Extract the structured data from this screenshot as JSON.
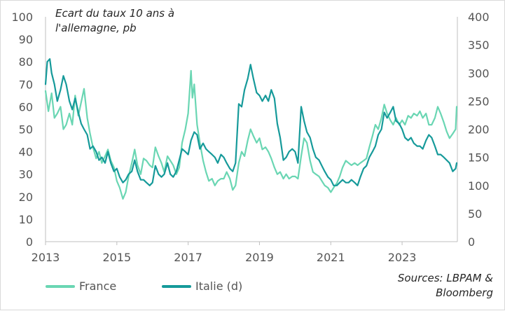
{
  "chart_data": {
    "type": "line",
    "title": "Ecart du taux 10 ans à l'allemagne, pb",
    "source": "Sources: LBPAM & Bloomberg",
    "x_range": [
      2013.0,
      2024.55
    ],
    "x_ticks": [
      "2013",
      "2015",
      "2017",
      "2019",
      "2021",
      "2023"
    ],
    "y_left": {
      "range": [
        0,
        100
      ],
      "ticks": [
        "0",
        "10",
        "20",
        "30",
        "40",
        "50",
        "60",
        "70",
        "80",
        "90",
        "100"
      ]
    },
    "y_right": {
      "range": [
        0,
        400
      ],
      "ticks": [
        "0",
        "50",
        "100",
        "150",
        "200",
        "250",
        "300",
        "350",
        "400"
      ]
    },
    "grid": false,
    "legend_position": "bottom-left",
    "series": [
      {
        "name": "France",
        "axis": "left",
        "color": "#6ad6b3",
        "points": [
          [
            2013.0,
            67
          ],
          [
            2013.08,
            58
          ],
          [
            2013.17,
            66
          ],
          [
            2013.25,
            55
          ],
          [
            2013.33,
            57
          ],
          [
            2013.42,
            60
          ],
          [
            2013.5,
            50
          ],
          [
            2013.58,
            52
          ],
          [
            2013.67,
            57
          ],
          [
            2013.75,
            52
          ],
          [
            2013.83,
            65
          ],
          [
            2013.92,
            56
          ],
          [
            2014.0,
            62
          ],
          [
            2014.08,
            68
          ],
          [
            2014.17,
            55
          ],
          [
            2014.25,
            48
          ],
          [
            2014.33,
            42
          ],
          [
            2014.42,
            37
          ],
          [
            2014.5,
            40
          ],
          [
            2014.58,
            35
          ],
          [
            2014.67,
            38
          ],
          [
            2014.75,
            41
          ],
          [
            2014.83,
            36
          ],
          [
            2014.92,
            33
          ],
          [
            2015.0,
            27
          ],
          [
            2015.08,
            24
          ],
          [
            2015.17,
            19
          ],
          [
            2015.25,
            22
          ],
          [
            2015.33,
            29
          ],
          [
            2015.42,
            35
          ],
          [
            2015.5,
            41
          ],
          [
            2015.58,
            34
          ],
          [
            2015.67,
            30
          ],
          [
            2015.75,
            37
          ],
          [
            2015.83,
            36
          ],
          [
            2015.92,
            34
          ],
          [
            2016.0,
            33
          ],
          [
            2016.08,
            42
          ],
          [
            2016.17,
            38
          ],
          [
            2016.25,
            35
          ],
          [
            2016.33,
            31
          ],
          [
            2016.42,
            38
          ],
          [
            2016.5,
            36
          ],
          [
            2016.58,
            34
          ],
          [
            2016.67,
            30
          ],
          [
            2016.75,
            33
          ],
          [
            2016.83,
            44
          ],
          [
            2016.92,
            50
          ],
          [
            2017.0,
            57
          ],
          [
            2017.08,
            76
          ],
          [
            2017.12,
            64
          ],
          [
            2017.17,
            70
          ],
          [
            2017.25,
            52
          ],
          [
            2017.33,
            44
          ],
          [
            2017.42,
            36
          ],
          [
            2017.5,
            31
          ],
          [
            2017.58,
            27
          ],
          [
            2017.67,
            28
          ],
          [
            2017.75,
            25
          ],
          [
            2017.83,
            27
          ],
          [
            2017.92,
            28
          ],
          [
            2018.0,
            28
          ],
          [
            2018.08,
            31
          ],
          [
            2018.17,
            28
          ],
          [
            2018.25,
            23
          ],
          [
            2018.33,
            25
          ],
          [
            2018.42,
            35
          ],
          [
            2018.5,
            40
          ],
          [
            2018.58,
            38
          ],
          [
            2018.67,
            45
          ],
          [
            2018.75,
            50
          ],
          [
            2018.83,
            47
          ],
          [
            2018.92,
            44
          ],
          [
            2019.0,
            46
          ],
          [
            2019.08,
            41
          ],
          [
            2019.17,
            42
          ],
          [
            2019.25,
            40
          ],
          [
            2019.33,
            37
          ],
          [
            2019.42,
            33
          ],
          [
            2019.5,
            30
          ],
          [
            2019.58,
            31
          ],
          [
            2019.67,
            28
          ],
          [
            2019.75,
            30
          ],
          [
            2019.83,
            28
          ],
          [
            2019.92,
            29
          ],
          [
            2020.0,
            29
          ],
          [
            2020.08,
            28
          ],
          [
            2020.17,
            38
          ],
          [
            2020.25,
            46
          ],
          [
            2020.33,
            44
          ],
          [
            2020.42,
            36
          ],
          [
            2020.5,
            31
          ],
          [
            2020.58,
            30
          ],
          [
            2020.67,
            29
          ],
          [
            2020.75,
            27
          ],
          [
            2020.83,
            25
          ],
          [
            2020.92,
            24
          ],
          [
            2021.0,
            22
          ],
          [
            2021.08,
            24
          ],
          [
            2021.17,
            26
          ],
          [
            2021.25,
            29
          ],
          [
            2021.33,
            33
          ],
          [
            2021.42,
            36
          ],
          [
            2021.5,
            35
          ],
          [
            2021.58,
            34
          ],
          [
            2021.67,
            35
          ],
          [
            2021.75,
            34
          ],
          [
            2021.83,
            35
          ],
          [
            2021.92,
            36
          ],
          [
            2022.0,
            37
          ],
          [
            2022.08,
            42
          ],
          [
            2022.17,
            47
          ],
          [
            2022.25,
            52
          ],
          [
            2022.33,
            50
          ],
          [
            2022.42,
            55
          ],
          [
            2022.5,
            61
          ],
          [
            2022.58,
            57
          ],
          [
            2022.67,
            54
          ],
          [
            2022.75,
            52
          ],
          [
            2022.83,
            55
          ],
          [
            2022.92,
            52
          ],
          [
            2023.0,
            54
          ],
          [
            2023.08,
            52
          ],
          [
            2023.17,
            56
          ],
          [
            2023.25,
            55
          ],
          [
            2023.33,
            57
          ],
          [
            2023.42,
            56
          ],
          [
            2023.5,
            58
          ],
          [
            2023.58,
            55
          ],
          [
            2023.67,
            57
          ],
          [
            2023.75,
            52
          ],
          [
            2023.83,
            52
          ],
          [
            2023.92,
            55
          ],
          [
            2024.0,
            60
          ],
          [
            2024.08,
            57
          ],
          [
            2024.17,
            53
          ],
          [
            2024.25,
            49
          ],
          [
            2024.33,
            46
          ],
          [
            2024.42,
            48
          ],
          [
            2024.5,
            50
          ],
          [
            2024.53,
            60
          ]
        ]
      },
      {
        "name": "Italie (d)",
        "axis": "right",
        "color": "#169a9a",
        "points": [
          [
            2013.0,
            280
          ],
          [
            2013.05,
            320
          ],
          [
            2013.12,
            325
          ],
          [
            2013.17,
            300
          ],
          [
            2013.25,
            280
          ],
          [
            2013.33,
            250
          ],
          [
            2013.42,
            270
          ],
          [
            2013.5,
            295
          ],
          [
            2013.58,
            280
          ],
          [
            2013.67,
            250
          ],
          [
            2013.75,
            235
          ],
          [
            2013.83,
            255
          ],
          [
            2013.92,
            230
          ],
          [
            2014.0,
            210
          ],
          [
            2014.08,
            200
          ],
          [
            2014.17,
            190
          ],
          [
            2014.25,
            165
          ],
          [
            2014.33,
            170
          ],
          [
            2014.42,
            160
          ],
          [
            2014.5,
            145
          ],
          [
            2014.58,
            150
          ],
          [
            2014.67,
            140
          ],
          [
            2014.75,
            160
          ],
          [
            2014.83,
            140
          ],
          [
            2014.92,
            125
          ],
          [
            2015.0,
            130
          ],
          [
            2015.08,
            115
          ],
          [
            2015.17,
            105
          ],
          [
            2015.25,
            110
          ],
          [
            2015.33,
            120
          ],
          [
            2015.42,
            125
          ],
          [
            2015.5,
            145
          ],
          [
            2015.58,
            125
          ],
          [
            2015.67,
            110
          ],
          [
            2015.75,
            110
          ],
          [
            2015.83,
            105
          ],
          [
            2015.92,
            100
          ],
          [
            2016.0,
            105
          ],
          [
            2016.08,
            135
          ],
          [
            2016.17,
            120
          ],
          [
            2016.25,
            115
          ],
          [
            2016.33,
            120
          ],
          [
            2016.42,
            140
          ],
          [
            2016.5,
            120
          ],
          [
            2016.58,
            115
          ],
          [
            2016.67,
            125
          ],
          [
            2016.75,
            145
          ],
          [
            2016.83,
            165
          ],
          [
            2016.92,
            160
          ],
          [
            2017.0,
            155
          ],
          [
            2017.08,
            180
          ],
          [
            2017.17,
            195
          ],
          [
            2017.25,
            190
          ],
          [
            2017.33,
            165
          ],
          [
            2017.42,
            175
          ],
          [
            2017.5,
            165
          ],
          [
            2017.58,
            160
          ],
          [
            2017.67,
            155
          ],
          [
            2017.75,
            150
          ],
          [
            2017.83,
            140
          ],
          [
            2017.92,
            155
          ],
          [
            2018.0,
            150
          ],
          [
            2018.08,
            140
          ],
          [
            2018.17,
            130
          ],
          [
            2018.25,
            125
          ],
          [
            2018.33,
            140
          ],
          [
            2018.42,
            245
          ],
          [
            2018.5,
            240
          ],
          [
            2018.58,
            270
          ],
          [
            2018.67,
            290
          ],
          [
            2018.75,
            315
          ],
          [
            2018.83,
            290
          ],
          [
            2018.92,
            265
          ],
          [
            2019.0,
            260
          ],
          [
            2019.08,
            250
          ],
          [
            2019.17,
            260
          ],
          [
            2019.25,
            250
          ],
          [
            2019.33,
            270
          ],
          [
            2019.42,
            255
          ],
          [
            2019.5,
            210
          ],
          [
            2019.58,
            185
          ],
          [
            2019.67,
            145
          ],
          [
            2019.75,
            150
          ],
          [
            2019.83,
            160
          ],
          [
            2019.92,
            165
          ],
          [
            2020.0,
            160
          ],
          [
            2020.08,
            140
          ],
          [
            2020.17,
            240
          ],
          [
            2020.25,
            215
          ],
          [
            2020.33,
            195
          ],
          [
            2020.42,
            185
          ],
          [
            2020.5,
            165
          ],
          [
            2020.58,
            150
          ],
          [
            2020.67,
            145
          ],
          [
            2020.75,
            135
          ],
          [
            2020.83,
            125
          ],
          [
            2020.92,
            115
          ],
          [
            2021.0,
            110
          ],
          [
            2021.08,
            100
          ],
          [
            2021.17,
            100
          ],
          [
            2021.25,
            105
          ],
          [
            2021.33,
            110
          ],
          [
            2021.42,
            105
          ],
          [
            2021.5,
            105
          ],
          [
            2021.58,
            110
          ],
          [
            2021.67,
            105
          ],
          [
            2021.75,
            100
          ],
          [
            2021.83,
            115
          ],
          [
            2021.92,
            130
          ],
          [
            2022.0,
            135
          ],
          [
            2022.08,
            150
          ],
          [
            2022.17,
            160
          ],
          [
            2022.25,
            170
          ],
          [
            2022.33,
            190
          ],
          [
            2022.42,
            200
          ],
          [
            2022.5,
            230
          ],
          [
            2022.58,
            220
          ],
          [
            2022.67,
            230
          ],
          [
            2022.75,
            240
          ],
          [
            2022.83,
            215
          ],
          [
            2022.92,
            210
          ],
          [
            2023.0,
            200
          ],
          [
            2023.08,
            185
          ],
          [
            2023.17,
            180
          ],
          [
            2023.25,
            185
          ],
          [
            2023.33,
            175
          ],
          [
            2023.42,
            170
          ],
          [
            2023.5,
            170
          ],
          [
            2023.58,
            165
          ],
          [
            2023.67,
            180
          ],
          [
            2023.75,
            190
          ],
          [
            2023.83,
            185
          ],
          [
            2023.92,
            170
          ],
          [
            2024.0,
            155
          ],
          [
            2024.08,
            155
          ],
          [
            2024.17,
            150
          ],
          [
            2024.25,
            145
          ],
          [
            2024.33,
            140
          ],
          [
            2024.42,
            125
          ],
          [
            2024.5,
            130
          ],
          [
            2024.53,
            140
          ]
        ]
      }
    ]
  }
}
